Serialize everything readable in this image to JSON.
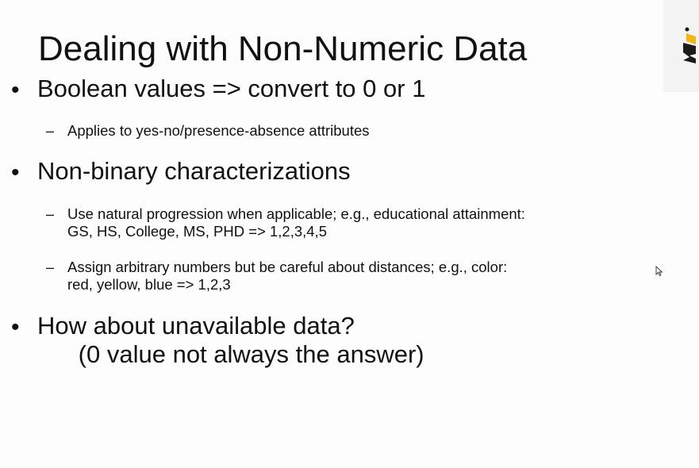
{
  "slide": {
    "title": "Dealing with Non-Numeric Data",
    "bullets": [
      {
        "marker": "•",
        "text": "Boolean values => convert to 0 or 1",
        "subs": [
          {
            "marker": "–",
            "text": "Applies to yes-no/presence-absence attributes"
          }
        ]
      },
      {
        "marker": "•",
        "text": "Non-binary characterizations",
        "subs": [
          {
            "marker": "–",
            "text": "Use natural progression when applicable; e.g., educational attainment:\nGS, HS, College, MS, PHD => 1,2,3,4,5"
          },
          {
            "marker": "–",
            "text": "Assign arbitrary numbers but be careful about distances; e.g., color:\nred, yellow, blue => 1,2,3"
          }
        ]
      },
      {
        "marker": "•",
        "text": "How about unavailable data?\n      (0 value not always the answer)",
        "subs": []
      }
    ]
  },
  "colors": {
    "text": "#111111",
    "background": "#fdfdfd",
    "logo_yellow": "#f2b516",
    "logo_dark": "#1a1a1a"
  },
  "icons": {
    "logo": "brand-logo-icon",
    "cursor": "mouse-pointer-icon"
  }
}
